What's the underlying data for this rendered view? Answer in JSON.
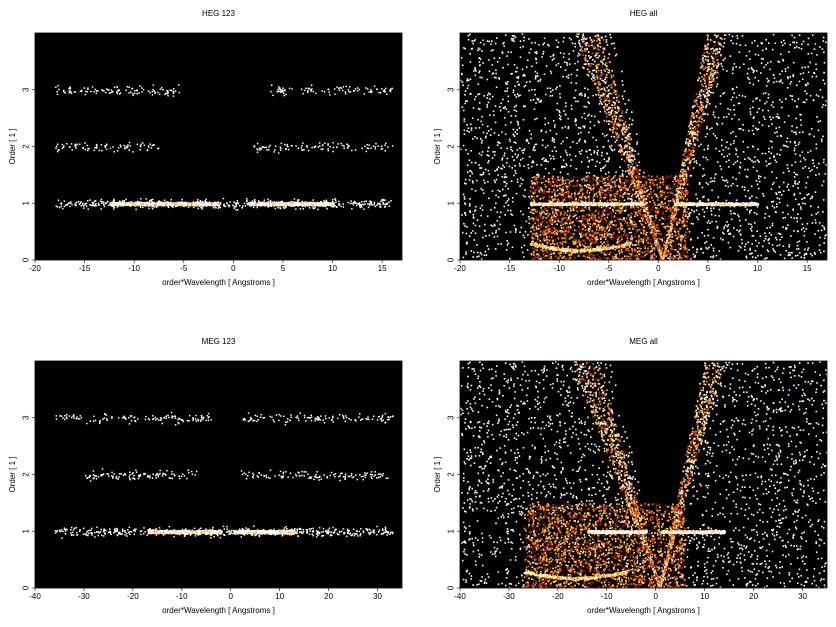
{
  "chart_data": [
    {
      "type": "heatmap",
      "title": "HEG 123",
      "xlabel": "order*Wavelength [ Angstroms ]",
      "ylabel": "Order [ 1 ]",
      "xlim": [
        -20,
        17
      ],
      "ylim": [
        0,
        4
      ],
      "xticks": [
        -20,
        -15,
        -10,
        -5,
        0,
        5,
        10,
        15
      ],
      "yticks": [
        0,
        1,
        2,
        3
      ],
      "background": "#000000",
      "bands": [
        {
          "order": 1,
          "x_min": -18,
          "x_max": 16,
          "bright_ranges": [
            [
              -12.5,
              -1.5
            ],
            [
              1.5,
              10
            ]
          ]
        },
        {
          "order": 2,
          "x_min": -18,
          "x_max": 16,
          "gap": [
            -7.5,
            2
          ]
        },
        {
          "order": 3,
          "x_min": -18,
          "x_max": 16,
          "gap": [
            -5.5,
            3.5
          ]
        }
      ]
    },
    {
      "type": "heatmap",
      "title": "HEG all",
      "xlabel": "order*Wavelength [ Angstroms ]",
      "ylabel": "Order [ 1 ]",
      "xlim": [
        -20,
        17
      ],
      "ylim": [
        0,
        4
      ],
      "xticks": [
        -20,
        -15,
        -10,
        -5,
        0,
        5,
        10,
        15
      ],
      "yticks": [
        0,
        1,
        2,
        3
      ],
      "background": "#000000",
      "bands": [
        {
          "order": 1,
          "x_min": -13,
          "x_max": 16,
          "bright_ranges": [
            [
              -13,
              -1.5
            ],
            [
              1.5,
              10
            ]
          ]
        }
      ]
    },
    {
      "type": "heatmap",
      "title": "MEG 123",
      "xlabel": "order*Wavelength [ Angstroms ]",
      "ylabel": "Order [ 1 ]",
      "xlim": [
        -40,
        35
      ],
      "ylim": [
        0,
        4
      ],
      "xticks": [
        -40,
        -30,
        -20,
        -10,
        0,
        10,
        20,
        30
      ],
      "yticks": [
        0,
        1,
        2,
        3
      ],
      "background": "#000000",
      "bands": [
        {
          "order": 1,
          "x_min": -36,
          "x_max": 33,
          "bright_ranges": [
            [
              -17,
              -2
            ],
            [
              0.5,
              13
            ]
          ]
        },
        {
          "order": 2,
          "x_min": -30,
          "x_max": 33,
          "gap": [
            -7,
            2
          ]
        },
        {
          "order": 3,
          "x_min": -36,
          "x_max": 33,
          "gap": [
            -4,
            2
          ]
        }
      ]
    },
    {
      "type": "heatmap",
      "title": "MEG all",
      "xlabel": "order*Wavelength [ Angstroms ]",
      "ylabel": "Order [ 1 ]",
      "xlim": [
        -40,
        35
      ],
      "ylim": [
        0,
        4
      ],
      "xticks": [
        -40,
        -30,
        -20,
        -10,
        0,
        10,
        20,
        30
      ],
      "yticks": [
        0,
        1,
        2,
        3
      ],
      "background": "#000000",
      "bands": [
        {
          "order": 1,
          "x_min": -27,
          "x_max": 33,
          "bright_ranges": [
            [
              -14,
              -2
            ],
            [
              1,
              14
            ]
          ]
        }
      ]
    }
  ]
}
